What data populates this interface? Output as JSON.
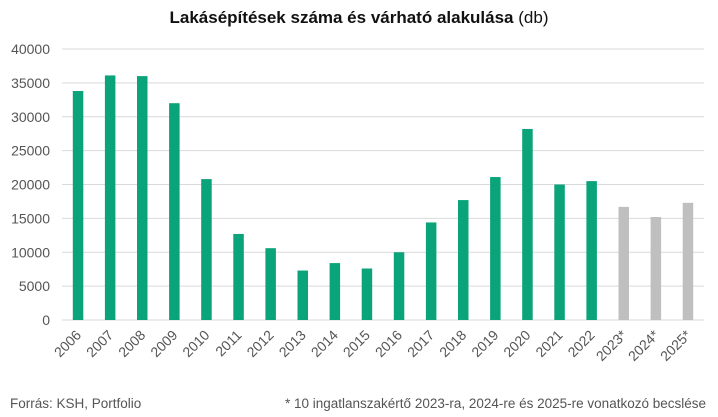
{
  "title": "Lakásépítések száma és várható alakulása",
  "title_unit": "(db)",
  "source": "Forrás: KSH, Portfolio",
  "footnote": "* 10 ingatlanszakértő 2023-ra, 2024-re és 2025-re vonatkozó becslése",
  "colors": {
    "actual": "#0aa37a",
    "estimate": "#bfbfbf",
    "grid": "#d9d9d9",
    "axis_text": "#555555"
  },
  "chart_data": {
    "type": "bar",
    "title": "Lakásépítések száma és várható alakulása (db)",
    "categories": [
      "2006",
      "2007",
      "2008",
      "2009",
      "2010",
      "2011",
      "2012",
      "2013",
      "2014",
      "2015",
      "2016",
      "2017",
      "2018",
      "2019",
      "2020",
      "2021",
      "2022",
      "2023*",
      "2024*",
      "2025*"
    ],
    "values": [
      33800,
      36100,
      36000,
      32000,
      20800,
      12700,
      10600,
      7300,
      8400,
      7600,
      10000,
      14400,
      17700,
      21100,
      28200,
      20000,
      20500,
      16700,
      15200,
      17300
    ],
    "estimate_flags": [
      false,
      false,
      false,
      false,
      false,
      false,
      false,
      false,
      false,
      false,
      false,
      false,
      false,
      false,
      false,
      false,
      false,
      true,
      true,
      true
    ],
    "ylim": [
      0,
      40000
    ],
    "yticks": [
      "0",
      "5000",
      "10000",
      "15000",
      "20000",
      "25000",
      "30000",
      "35000",
      "40000"
    ],
    "grid": true,
    "xlabel": "",
    "ylabel": ""
  }
}
